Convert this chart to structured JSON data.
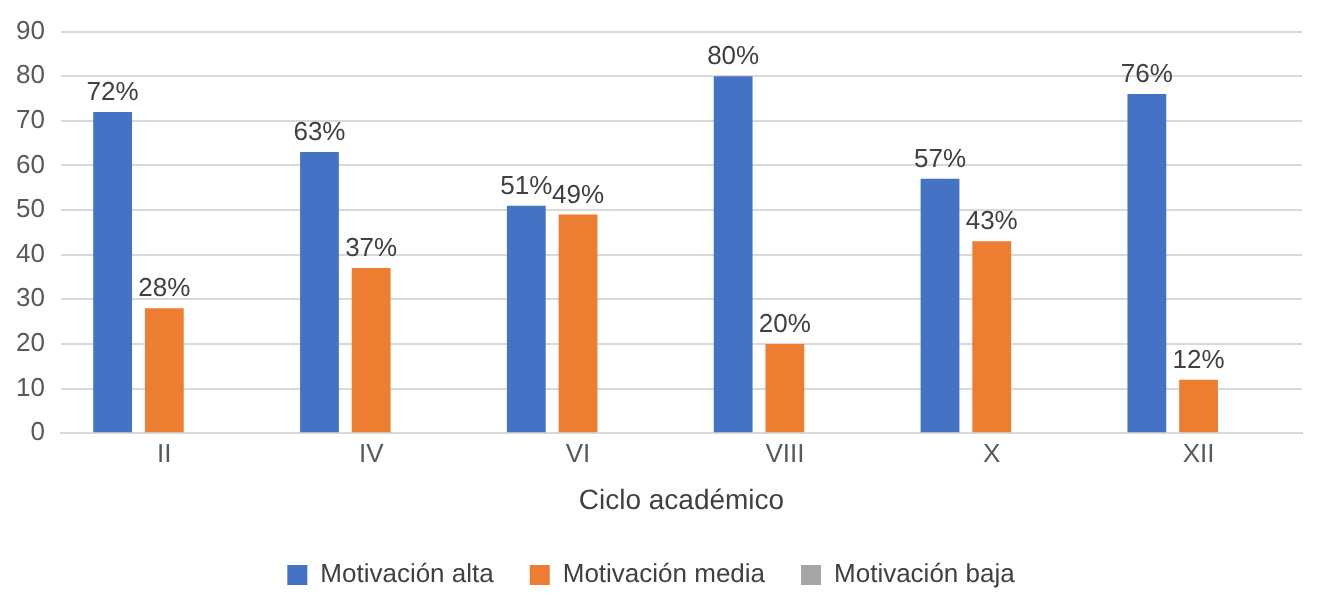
{
  "chart_data": {
    "type": "bar",
    "xlabel": "Ciclo académico",
    "categories": [
      "II",
      "IV",
      "VI",
      "VIII",
      "X",
      "XII"
    ],
    "series": [
      {
        "name": "Motivación alta",
        "color": "#4472c4",
        "values": [
          72,
          63,
          51,
          80,
          57,
          76
        ],
        "value_labels": [
          "72%",
          "63%",
          "51%",
          "80%",
          "57%",
          "76%"
        ]
      },
      {
        "name": "Motivación media",
        "color": "#ed7d31",
        "values": [
          28,
          37,
          49,
          20,
          43,
          12
        ],
        "value_labels": [
          "28%",
          "37%",
          "49%",
          "20%",
          "43%",
          "12%"
        ]
      },
      {
        "name": "Motivación baja",
        "color": "#a5a5a5",
        "values": [
          null,
          null,
          null,
          null,
          null,
          null
        ]
      }
    ],
    "ylim": [
      0,
      90
    ],
    "yticks": [
      0,
      10,
      20,
      30,
      40,
      50,
      60,
      70,
      80,
      90
    ],
    "grid": "y",
    "legend": "bottom"
  }
}
